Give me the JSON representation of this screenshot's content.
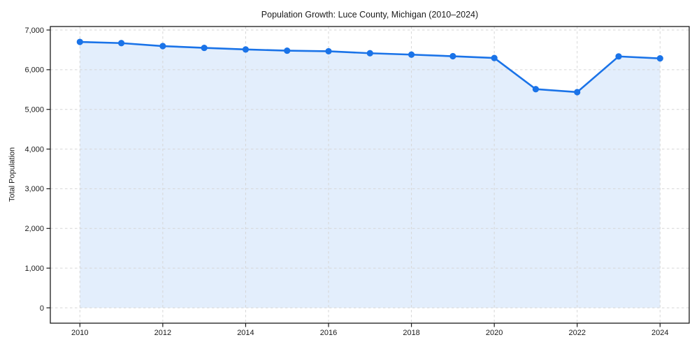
{
  "chart_data": {
    "type": "line",
    "title": "Population Growth: Luce County, Michigan (2010–2024)",
    "xlabel": "",
    "ylabel": "Total Population",
    "x": [
      2010,
      2011,
      2012,
      2013,
      2014,
      2015,
      2016,
      2017,
      2018,
      2019,
      2020,
      2021,
      2022,
      2023,
      2024
    ],
    "series": [
      {
        "name": "Total Population",
        "values": [
          6700,
          6670,
          6595,
          6550,
          6510,
          6480,
          6465,
          6415,
          6380,
          6340,
          6295,
          5510,
          5435,
          6335,
          6285
        ]
      }
    ],
    "xlim": [
      2010,
      2024
    ],
    "ylim": [
      0,
      7000
    ],
    "xticks": [
      2010,
      2012,
      2014,
      2016,
      2018,
      2020,
      2022,
      2024
    ],
    "xtick_labels": [
      "2010",
      "2012",
      "2014",
      "2016",
      "2018",
      "2020",
      "2022",
      "2024"
    ],
    "yticks": [
      0,
      1000,
      2000,
      3000,
      4000,
      5000,
      6000,
      7000
    ],
    "ytick_labels": [
      "0",
      "1,000",
      "2,000",
      "3,000",
      "4,000",
      "5,000",
      "6,000",
      "7,000"
    ],
    "grid": true,
    "grid_style": "dashed",
    "legend": false,
    "marker": "circle",
    "fill": "area-to-zero",
    "colors": {
      "line": "#1a73e8",
      "marker": "#1a73e8",
      "area_fill": "rgba(26,115,232,0.12)",
      "grid": "#d6d6d6",
      "spine": "#1a1a1a",
      "text": "#1a1a1a",
      "background": "#ffffff"
    }
  }
}
